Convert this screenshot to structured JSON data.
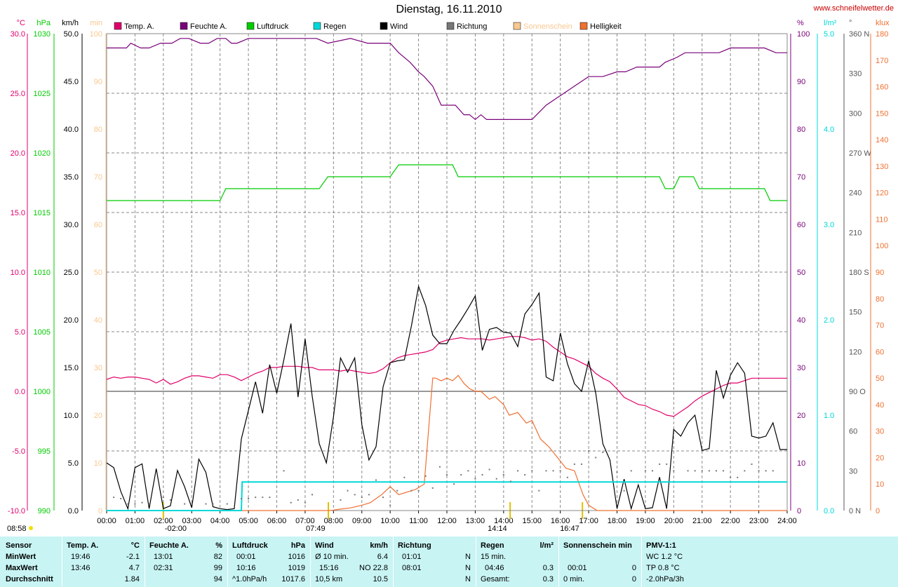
{
  "title": "Dienstag, 16.11.2010",
  "url": "www.schneifelwetter.de",
  "colors": {
    "temp": "#e0006a",
    "feuchte": "#7a007a",
    "luftdruck": "#00cc00",
    "regen": "#00d8d8",
    "wind": "#000000",
    "richtung": "#777777",
    "sonnenschein": "#f8c890",
    "helligkeit": "#f07030",
    "stats_bg": "#c8f4f4"
  },
  "axes": {
    "temp": {
      "unit": "°C",
      "ticks": [
        "30.0",
        "25.0",
        "20.0",
        "15.0",
        "10.0",
        "5.0",
        "0.0",
        "-5.0",
        "-10.0"
      ]
    },
    "hpa": {
      "unit": "hPa",
      "ticks": [
        "1030",
        "1025",
        "1020",
        "1015",
        "1010",
        "1005",
        "1000",
        "995",
        "990"
      ]
    },
    "kmh": {
      "unit": "km/h",
      "ticks": [
        "50.0",
        "45.0",
        "40.0",
        "35.0",
        "30.0",
        "25.0",
        "20.0",
        "15.0",
        "10.0",
        "5.0",
        "0.0"
      ]
    },
    "min": {
      "unit": "min",
      "ticks": [
        "100",
        "90",
        "80",
        "70",
        "60",
        "50",
        "40",
        "30",
        "20",
        "10",
        "0"
      ]
    },
    "pct": {
      "unit": "%",
      "ticks": [
        "100",
        "90",
        "80",
        "70",
        "60",
        "50",
        "40",
        "30",
        "20",
        "10",
        "0"
      ]
    },
    "lm2": {
      "unit": "l/m²",
      "ticks": [
        "5.0",
        "4.0",
        "3.0",
        "2.0",
        "1.0",
        "0.0"
      ]
    },
    "deg": {
      "unit": "°",
      "ticks": [
        "360 N",
        "330",
        "300",
        "270 W",
        "240",
        "210",
        "180 S",
        "150",
        "120",
        "90 O",
        "60",
        "30",
        "0 N"
      ]
    },
    "klux": {
      "unit": "klux",
      "ticks": [
        "180",
        "170",
        "160",
        "150",
        "140",
        "130",
        "120",
        "110",
        "100",
        "90",
        "80",
        "70",
        "60",
        "50",
        "40",
        "30",
        "20",
        "10",
        "0"
      ]
    }
  },
  "x_ticks": [
    "00:00",
    "01:00",
    "02:00",
    "03:00",
    "04:00",
    "05:00",
    "06:00",
    "07:00",
    "08:00",
    "09:00",
    "10:00",
    "11:00",
    "12:00",
    "13:00",
    "14:00",
    "15:00",
    "16:00",
    "17:00",
    "18:00",
    "19:00",
    "20:00",
    "21:00",
    "22:00",
    "23:00",
    "24:00"
  ],
  "markers": [
    {
      "label": "08:58",
      "pos": "left"
    },
    {
      "label": "-02:00",
      "hour": 2.0
    },
    {
      "label": "07:49",
      "hour": 7.82
    },
    {
      "label": "14:14",
      "hour": 14.23
    },
    {
      "label": "16:47",
      "hour": 16.78
    }
  ],
  "legend": [
    {
      "key": "temp",
      "label": "Temp. A."
    },
    {
      "key": "feuchte",
      "label": "Feuchte A."
    },
    {
      "key": "luftdruck",
      "label": "Luftdruck"
    },
    {
      "key": "regen",
      "label": "Regen"
    },
    {
      "key": "wind",
      "label": "Wind"
    },
    {
      "key": "richtung",
      "label": "Richtung"
    },
    {
      "key": "sonnenschein",
      "label": "Sonnenschein"
    },
    {
      "key": "helligkeit",
      "label": "Helligkeit"
    }
  ],
  "chart_data": {
    "type": "line",
    "x_unit": "hour of day",
    "x_range": [
      0,
      24
    ],
    "series": [
      {
        "name": "Feuchte A.",
        "axis": "pct",
        "x": [
          0,
          0.7,
          0.85,
          1.2,
          1.5,
          1.9,
          2.3,
          2.6,
          2.9,
          3.3,
          3.6,
          3.9,
          4.2,
          4.4,
          4.6,
          5,
          6,
          7,
          7.4,
          7.8,
          8.6,
          9.2,
          10,
          10.3,
          10.7,
          11,
          11.2,
          11.5,
          11.8,
          12.3,
          12.6,
          12.8,
          13,
          13.2,
          13.4,
          13.6,
          14,
          14.5,
          15,
          15.5,
          16,
          16.5,
          17,
          17.5,
          18,
          18.3,
          18.7,
          19,
          19.5,
          19.7,
          20.1,
          20.4,
          20.8,
          21.2,
          21.6,
          22,
          22.4,
          22.8,
          23.2,
          23.6,
          24
        ],
        "values": [
          97,
          97,
          98,
          97,
          97,
          98,
          98,
          99,
          99,
          98,
          98,
          99,
          99,
          98,
          98,
          99,
          99,
          99,
          99,
          98,
          99,
          98,
          98,
          96,
          94,
          92,
          91,
          89,
          85,
          85,
          83,
          83,
          82,
          83,
          82,
          82,
          82,
          82,
          82,
          85,
          87,
          89,
          91,
          91,
          92,
          92,
          93,
          93,
          93,
          94,
          95,
          96,
          96,
          96,
          96,
          97,
          97,
          97,
          97,
          96,
          96
        ]
      },
      {
        "name": "Luftdruck",
        "axis": "hpa",
        "x": [
          0,
          4,
          4.2,
          7.5,
          7.8,
          10,
          10.3,
          12.2,
          12.4,
          19.5,
          19.7,
          20,
          20.2,
          20.7,
          20.9,
          23.2,
          23.4,
          24
        ],
        "values": [
          1016,
          1016,
          1017,
          1017,
          1018,
          1018,
          1019,
          1019,
          1018,
          1018,
          1017,
          1017,
          1018,
          1018,
          1017,
          1017,
          1016,
          1016
        ]
      },
      {
        "name": "Temp. A.",
        "axis": "temp",
        "x": [
          0,
          0.25,
          0.5,
          0.75,
          1,
          1.25,
          1.5,
          1.75,
          2,
          2.25,
          2.5,
          2.75,
          3,
          3.25,
          3.5,
          3.75,
          4,
          4.25,
          4.5,
          4.75,
          5,
          5.25,
          5.5,
          5.75,
          6,
          6.25,
          6.5,
          6.75,
          7,
          7.25,
          7.5,
          7.75,
          8,
          8.25,
          8.5,
          8.75,
          9,
          9.25,
          9.5,
          9.75,
          10,
          10.25,
          10.5,
          10.75,
          11,
          11.25,
          11.5,
          11.75,
          12,
          12.25,
          12.5,
          12.75,
          13,
          13.25,
          13.5,
          13.75,
          14,
          14.25,
          14.5,
          14.75,
          15,
          15.25,
          15.5,
          15.75,
          16,
          16.25,
          16.5,
          16.75,
          17,
          17.25,
          17.5,
          17.75,
          18,
          18.25,
          18.5,
          18.75,
          19,
          19.25,
          19.5,
          19.75,
          20,
          20.25,
          20.5,
          20.75,
          21,
          21.25,
          21.5,
          21.75,
          22,
          22.25,
          22.5,
          22.75,
          23,
          23.25,
          23.5,
          23.75,
          24
        ],
        "values": [
          1.0,
          1.2,
          1.1,
          1.2,
          1.2,
          1.1,
          1.0,
          0.7,
          1.0,
          0.6,
          0.8,
          1.1,
          1.3,
          1.3,
          1.2,
          1.1,
          1.4,
          1.4,
          1.2,
          0.9,
          1.2,
          1.5,
          1.7,
          2.0,
          2.0,
          2.1,
          2.1,
          2.1,
          2.0,
          2.0,
          1.8,
          1.8,
          1.8,
          1.7,
          1.8,
          1.7,
          1.6,
          1.5,
          1.6,
          1.9,
          2.4,
          2.8,
          3.0,
          3.1,
          3.2,
          3.3,
          3.5,
          4.1,
          4.3,
          4.4,
          4.5,
          4.4,
          4.4,
          4.4,
          4.3,
          4.4,
          4.5,
          4.6,
          4.6,
          4.5,
          4.3,
          4.4,
          4.2,
          3.7,
          3.3,
          2.9,
          2.7,
          2.4,
          2.1,
          1.5,
          1.1,
          0.8,
          0.2,
          -0.5,
          -0.8,
          -1.1,
          -1.2,
          -1.5,
          -1.7,
          -2.0,
          -2.1,
          -1.7,
          -1.3,
          -0.8,
          -0.4,
          -0.1,
          0.2,
          0.5,
          0.7,
          0.7,
          0.9,
          1.1,
          1.1,
          1.1,
          1.1,
          1.1,
          1.1
        ]
      },
      {
        "name": "Wind",
        "axis": "kmh",
        "x": [
          0,
          0.25,
          0.5,
          0.75,
          1,
          1.25,
          1.5,
          1.75,
          2,
          2.25,
          2.5,
          2.75,
          3,
          3.25,
          3.5,
          3.75,
          4,
          4.25,
          4.5,
          4.75,
          5,
          5.25,
          5.5,
          5.75,
          6,
          6.25,
          6.5,
          6.75,
          7,
          7.25,
          7.5,
          7.75,
          8,
          8.25,
          8.5,
          8.75,
          9,
          9.25,
          9.5,
          9.75,
          10,
          10.25,
          10.5,
          10.75,
          11,
          11.25,
          11.5,
          11.75,
          12,
          12.25,
          12.5,
          12.75,
          13,
          13.25,
          13.5,
          13.75,
          14,
          14.25,
          14.5,
          14.75,
          15,
          15.25,
          15.5,
          15.75,
          16,
          16.25,
          16.5,
          16.75,
          17,
          17.25,
          17.5,
          17.75,
          18,
          18.25,
          18.5,
          18.75,
          19,
          19.25,
          19.5,
          19.75,
          20,
          20.25,
          20.5,
          20.75,
          21,
          21.25,
          21.5,
          21.75,
          22,
          22.25,
          22.5,
          22.75,
          23,
          23.25,
          23.5,
          23.75,
          24
        ],
        "values": [
          5.0,
          4.5,
          2.0,
          0.2,
          4.5,
          4.9,
          0.2,
          4.4,
          0.2,
          0.5,
          4.2,
          2.5,
          0.3,
          5.4,
          4.0,
          0.4,
          0.2,
          0.1,
          0.2,
          7.5,
          10.5,
          13.5,
          10.2,
          15.3,
          12.3,
          15.8,
          19.6,
          11.9,
          18.0,
          12.0,
          7.0,
          5.0,
          9.8,
          16.0,
          14.5,
          16.0,
          9.0,
          5.3,
          6.7,
          13.0,
          15.5,
          15.7,
          15.8,
          19.4,
          23.5,
          21.5,
          18.4,
          17.5,
          17.5,
          18.9,
          20.0,
          21.2,
          22.5,
          16.8,
          19.0,
          19.2,
          18.7,
          18.6,
          17.2,
          20.6,
          21.6,
          22.8,
          14.0,
          13.6,
          18.6,
          15.4,
          13.3,
          12.5,
          15.7,
          12.3,
          7.0,
          5.3,
          0.2,
          3.3,
          0.2,
          2.7,
          0.2,
          0.3,
          3.5,
          0.2,
          8.5,
          7.8,
          9.2,
          10.0,
          6.3,
          6.5,
          14.7,
          11.8,
          14.2,
          15.5,
          14.4,
          7.8,
          7.6,
          7.8,
          9.2,
          6.4,
          6.4
        ]
      },
      {
        "name": "Helligkeit",
        "axis": "klux",
        "x": [
          0,
          7.9,
          8.2,
          8.6,
          9.0,
          9.3,
          9.7,
          10.0,
          10.3,
          10.6,
          10.9,
          11.2,
          11.5,
          11.6,
          11.8,
          12.0,
          12.2,
          12.4,
          12.6,
          12.8,
          13.0,
          13.2,
          13.5,
          13.7,
          14.0,
          14.2,
          14.5,
          14.8,
          15.0,
          15.3,
          15.6,
          15.9,
          16.2,
          16.5,
          16.8,
          17.0,
          17.3,
          17.5,
          24
        ],
        "values": [
          0,
          0,
          0.5,
          1,
          2,
          3,
          6,
          9,
          6,
          7,
          8,
          10,
          50,
          50,
          49,
          50,
          49,
          51,
          48,
          46,
          45,
          45,
          42,
          43,
          40,
          36,
          37,
          33,
          34,
          27,
          24,
          20,
          16,
          15,
          6,
          2,
          0,
          0,
          0
        ]
      },
      {
        "name": "Regen",
        "axis": "lm2",
        "x": [
          0,
          4.75,
          4.78,
          24
        ],
        "values": [
          0,
          0,
          0.3,
          0.3
        ]
      },
      {
        "name": "Richtung",
        "axis": "deg",
        "type": "scatter",
        "x": [
          0.25,
          0.5,
          0.75,
          1.0,
          1.25,
          1.5,
          2.0,
          2.25,
          2.75,
          3.0,
          3.5,
          3.75,
          4.25,
          4.75,
          5.0,
          5.25,
          5.5,
          5.75,
          6.25,
          6.5,
          6.75,
          7.0,
          7.25,
          8.25,
          8.5,
          8.75,
          9.0,
          9.25,
          9.5,
          9.75,
          10.0,
          10.25,
          10.5,
          10.75,
          11.0,
          11.25,
          11.5,
          11.75,
          12.0,
          12.25,
          12.5,
          12.75,
          13.0,
          13.25,
          13.5,
          13.75,
          14.0,
          14.25,
          14.5,
          14.75,
          15.0,
          15.25,
          15.5,
          15.75,
          16.0,
          16.25,
          16.5,
          16.75,
          17.0,
          17.25,
          17.5,
          18.0,
          18.25,
          18.5,
          19.0,
          19.25,
          19.5,
          19.75,
          20.0,
          20.5,
          20.75,
          21.0,
          21.25,
          21.5,
          21.75,
          22.0,
          22.25,
          22.5,
          22.75,
          23.0,
          23.25,
          23.5
        ],
        "values": [
          10,
          9,
          5,
          5,
          6,
          5,
          10,
          8,
          5,
          5,
          5,
          5,
          5,
          9,
          9,
          10,
          10,
          10,
          30,
          6,
          8,
          6,
          12,
          8,
          15,
          12,
          10,
          12,
          23,
          10,
          4,
          15,
          25,
          15,
          15,
          26,
          17,
          33,
          27,
          20,
          27,
          30,
          24,
          27,
          31,
          24,
          27,
          22,
          30,
          27,
          30,
          15,
          30,
          30,
          30,
          25,
          35,
          35,
          45,
          40,
          44,
          29,
          15,
          30,
          30,
          30,
          35,
          35,
          30,
          30,
          30,
          30,
          30,
          30,
          30,
          25,
          25,
          30,
          35,
          30,
          30,
          30
        ]
      }
    ]
  },
  "stats": {
    "rows": [
      "MinWert",
      "MaxWert",
      "Durchschnitt"
    ],
    "sensor": "Sensor",
    "temp": {
      "title": "Temp. A.",
      "unit": "°C",
      "min_time": "19:46",
      "min": "-2.1",
      "max_time": "13:46",
      "max": "4.7",
      "avg": "1.84"
    },
    "feuchte": {
      "title": "Feuchte A.",
      "unit": "%",
      "min_time": "13:01",
      "min": "82",
      "max_time": "02:31",
      "max": "99",
      "avg": "94"
    },
    "luftdruck": {
      "title": "Luftdruck",
      "unit": "hPa",
      "min_time": "00:01",
      "min": "1016",
      "max_time": "10:16",
      "max": "1019",
      "trend": "^1.0hPa/h",
      "avg": "1017.6"
    },
    "wind": {
      "title": "Wind",
      "unit": "km/h",
      "r1a": "Ø 10 min.",
      "r1b": "6.4",
      "r2a": "15:16",
      "r2b": "NO 22.8",
      "r3a": "10,5 km",
      "r3b": "10.5"
    },
    "richtung": {
      "title": "Richtung",
      "r1a": "01:01",
      "r1b": "N",
      "r2a": "08:01",
      "r2b": "N",
      "r3b": "N"
    },
    "regen": {
      "title": "Regen",
      "unit": "l/m²",
      "r1a": "15 min.",
      "r2a": "04:46",
      "r2b": "0.3",
      "r3a": "Gesamt:",
      "r3b": "0.3"
    },
    "sonne": {
      "title": "Sonnenschein min",
      "r2a": "00:01",
      "r2b": "0",
      "r3a": "0 min.",
      "r3b": "0"
    },
    "pmv": {
      "title": "PMV-1:1",
      "r1": "WC 1.2 °C",
      "r2": "TP 0.8 °C",
      "r3": "-2.0hPa/3h"
    }
  }
}
